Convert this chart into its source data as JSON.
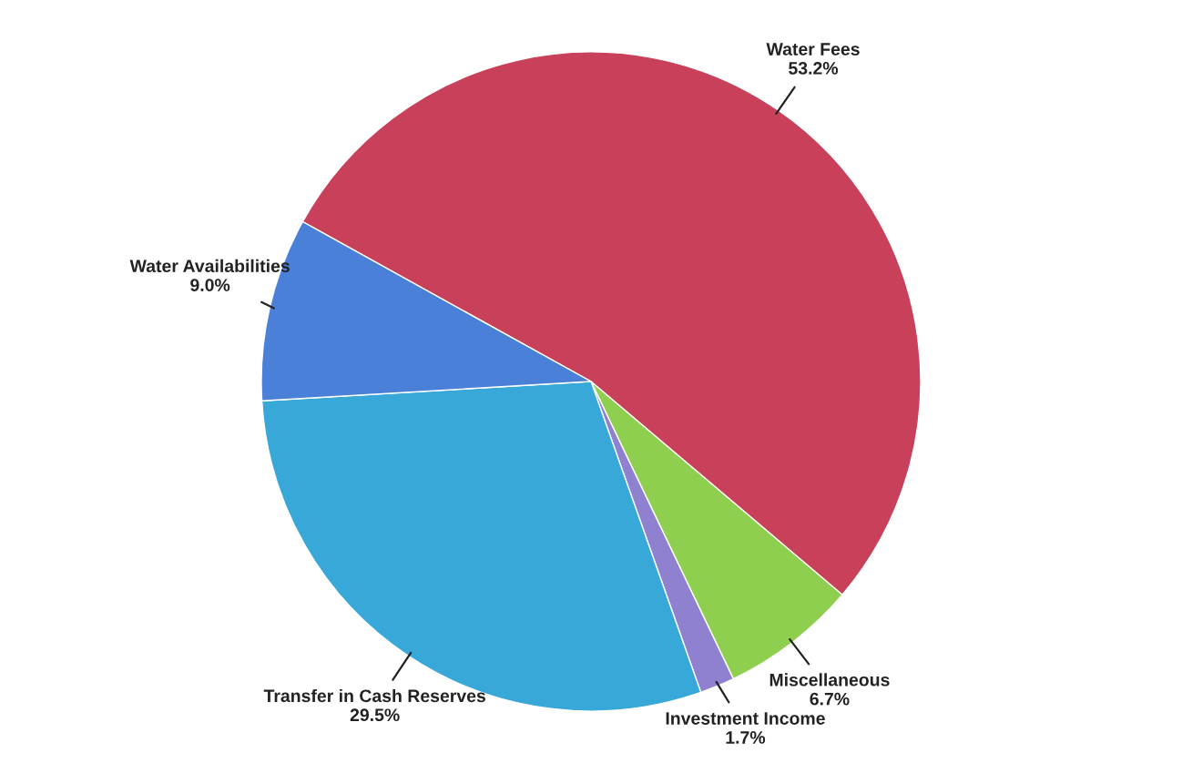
{
  "chart_data": {
    "type": "pie",
    "categories": [
      "Water Fees",
      "Miscellaneous",
      "Investment Income",
      "Transfer in Cash Reserves",
      "Water Availabilities"
    ],
    "values": [
      53.2,
      6.7,
      1.7,
      29.5,
      9.0
    ],
    "value_labels": [
      "53.2%",
      "6.7%",
      "1.7%",
      "29.5%",
      "9.0%"
    ],
    "colors": [
      "#c8405a",
      "#8fcf4f",
      "#9080d0",
      "#38a8d8",
      "#4a80d8"
    ]
  }
}
